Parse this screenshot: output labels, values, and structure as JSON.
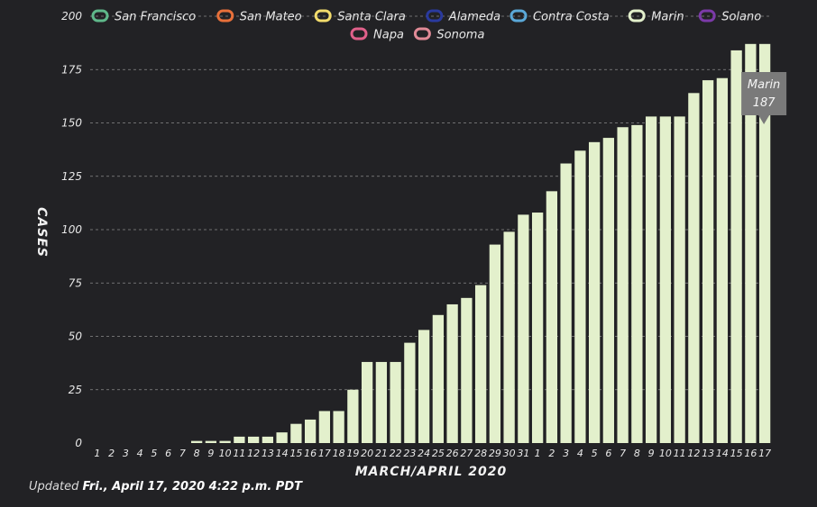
{
  "chart_data": {
    "type": "bar",
    "xlabel": "MARCH/APRIL 2020",
    "ylabel": "CASES",
    "ylim": [
      0,
      200
    ],
    "yticks": [
      0,
      25,
      50,
      75,
      100,
      125,
      150,
      175,
      200
    ],
    "grid": true,
    "legend_placement": "top",
    "legend": [
      {
        "name": "San Francisco",
        "color": "#5fb88a"
      },
      {
        "name": "San Mateo",
        "color": "#e8703a"
      },
      {
        "name": "Santa Clara",
        "color": "#f2dc6c"
      },
      {
        "name": "Alameda",
        "color": "#2a3a9e"
      },
      {
        "name": "Contra Costa",
        "color": "#5aa8d8"
      },
      {
        "name": "Marin",
        "color": "#e3f0cc"
      },
      {
        "name": "Solano",
        "color": "#7b3aa8"
      },
      {
        "name": "Napa",
        "color": "#e0608a"
      },
      {
        "name": "Sonoma",
        "color": "#e08a96"
      }
    ],
    "categories": [
      "1",
      "2",
      "3",
      "4",
      "5",
      "6",
      "7",
      "8",
      "9",
      "10",
      "11",
      "12",
      "13",
      "14",
      "15",
      "16",
      "17",
      "18",
      "19",
      "20",
      "21",
      "22",
      "23",
      "24",
      "25",
      "26",
      "27",
      "28",
      "29",
      "30",
      "31",
      "1",
      "2",
      "3",
      "4",
      "5",
      "6",
      "7",
      "8",
      "9",
      "10",
      "11",
      "12",
      "13",
      "14",
      "15",
      "16",
      "17"
    ],
    "series": [
      {
        "name": "Marin",
        "color": "#e3f0cc",
        "values": [
          0,
          0,
          0,
          0,
          0,
          0,
          0,
          1,
          1,
          1,
          3,
          3,
          3,
          5,
          9,
          11,
          15,
          15,
          25,
          38,
          38,
          38,
          47,
          53,
          60,
          65,
          68,
          74,
          93,
          99,
          107,
          108,
          118,
          131,
          137,
          141,
          143,
          148,
          149,
          153,
          153,
          153,
          164,
          170,
          171,
          184,
          187,
          187
        ]
      }
    ],
    "tooltip": {
      "series": "Marin",
      "value": "187"
    },
    "footer": {
      "prefix": "Updated",
      "date": "Fri., April 17, 2020 4:22 p.m. PDT"
    }
  }
}
